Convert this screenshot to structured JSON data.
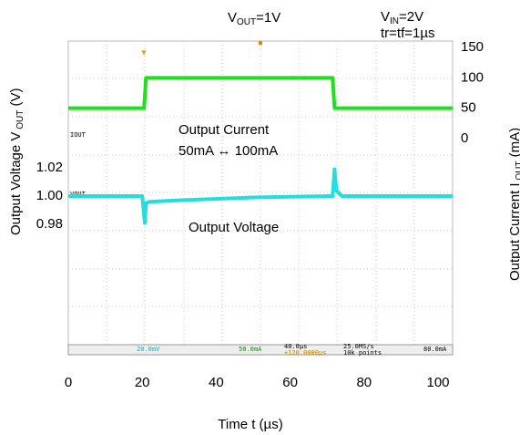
{
  "chart_data": {
    "type": "line",
    "title": {
      "main": "V",
      "sub": "OUT",
      "rest": "=1V"
    },
    "conditions": [
      {
        "main": "V",
        "sub": "IN",
        "rest": "=2V"
      },
      {
        "main": "tr=tf=1µs",
        "sub": "",
        "rest": ""
      }
    ],
    "x_label": "Time t (µs)",
    "y_label": {
      "main": "Output Voltage V",
      "sub": " OUT",
      "rest": " (V)"
    },
    "y2_label": {
      "main": "Output Current I",
      "sub": " OUT",
      "rest": " (mA)"
    },
    "annotations": [
      "50mA ↔ 100mA"
    ],
    "channel_labels": [
      "IOUT",
      "VOUT"
    ],
    "status_bar": [
      "20.0mV",
      "50.0mA",
      "40.0µs",
      "+120.0000µs",
      "25.0MS/s",
      "10k points",
      "80.0mA"
    ],
    "xlim": [
      0,
      100
    ],
    "xticks": [
      0,
      20,
      40,
      60,
      80,
      100
    ],
    "ylim": [
      0.98,
      1.02
    ],
    "yticks": [
      {
        "value": 1.02,
        "label": "1.02"
      },
      {
        "value": 1.0,
        "label": "1.00"
      },
      {
        "value": 0.98,
        "label": "0.98"
      }
    ],
    "y2lim": [
      0,
      150
    ],
    "y2ticks": [
      150,
      100,
      50,
      0
    ],
    "series": [
      {
        "name": "Output Current",
        "color": "#1ee01e",
        "axis": "y2",
        "x": [
          0,
          20.5,
          21,
          71.5,
          72,
          104
        ],
        "values": [
          50,
          50,
          100,
          100,
          50,
          50
        ]
      },
      {
        "name": "Output Voltage",
        "color": "#22dede",
        "axis": "y",
        "x": [
          0,
          20,
          20.7,
          21,
          22,
          30,
          50,
          70,
          71.5,
          72,
          72.5,
          74,
          104
        ],
        "values": [
          1.0,
          1.0,
          0.981,
          0.995,
          0.996,
          0.997,
          0.999,
          1.0,
          1.0,
          1.019,
          1.004,
          1.0,
          1.0
        ]
      }
    ]
  }
}
